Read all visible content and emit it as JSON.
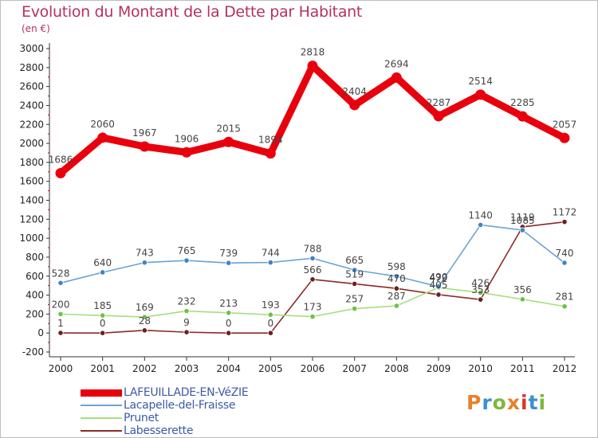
{
  "header": {
    "title": "Evolution du Montant de la Dette par Habitant",
    "unit": "(en €)"
  },
  "logo": {
    "text": "Proxiti",
    "colors": [
      "#e8802b",
      "#3a8fd4",
      "#7cb83a",
      "#e8802b",
      "#d9342b",
      "#3a8fd4",
      "#7cb83a"
    ]
  },
  "chart_data": {
    "type": "line",
    "title": "Evolution du Montant de la Dette par Habitant",
    "subtitle": "(en €)",
    "xlabel": "",
    "ylabel": "",
    "x": [
      "2000",
      "2001",
      "2002",
      "2003",
      "2004",
      "2005",
      "2006",
      "2007",
      "2008",
      "2009",
      "2010",
      "2011",
      "2012"
    ],
    "ylim": [
      -200,
      3000
    ],
    "yticks": [
      -200,
      0,
      200,
      400,
      600,
      800,
      1000,
      1200,
      1400,
      1600,
      1800,
      2000,
      2200,
      2400,
      2600,
      2800,
      3000
    ],
    "grid": false,
    "legend_position": "bottom-left",
    "series": [
      {
        "name": "LAFEUILLADE-EN-VéZIE",
        "color": "#e8000d",
        "marker": "#e8000d",
        "values": [
          1686,
          2060,
          1967,
          1906,
          2015,
          1894,
          2818,
          2404,
          2694,
          2287,
          2514,
          2285,
          2057
        ]
      },
      {
        "name": "Lacapelle-del-Fraisse",
        "color": "#6aa3d5",
        "marker": "#3d84c6",
        "values": [
          528,
          640,
          743,
          765,
          739,
          744,
          788,
          665,
          598,
          490,
          1140,
          1085,
          740
        ]
      },
      {
        "name": "Prunet",
        "color": "#a9de7e",
        "marker": "#6cc14a",
        "values": [
          200,
          185,
          169,
          232,
          213,
          193,
          173,
          257,
          287,
          479,
          426,
          356,
          281
        ]
      },
      {
        "name": "Labesserette",
        "color": "#8b2a2a",
        "marker": "#6b1f1f",
        "values": [
          1,
          0,
          28,
          9,
          0,
          0,
          566,
          519,
          470,
          405,
          353,
          1119,
          1172
        ]
      }
    ]
  }
}
